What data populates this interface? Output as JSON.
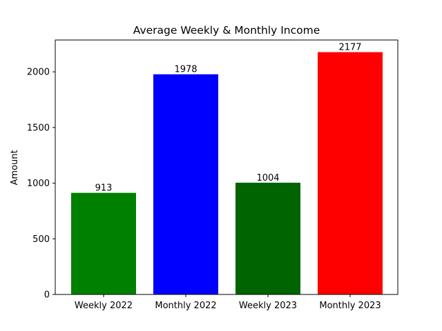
{
  "chart_data": {
    "type": "bar",
    "title": "Average Weekly & Monthly Income",
    "xlabel": "",
    "ylabel": "Amount",
    "categories": [
      "Weekly 2022",
      "Monthly 2022",
      "Weekly 2023",
      "Monthly 2023"
    ],
    "values": [
      913,
      1978,
      1004,
      2177
    ],
    "value_labels": [
      "913",
      "1978",
      "1004",
      "2177"
    ],
    "colors": [
      "#008000",
      "#0000ff",
      "#006400",
      "#ff0000"
    ],
    "ylim": [
      0,
      2286
    ],
    "yticks": [
      0,
      500,
      1000,
      1500,
      2000
    ],
    "ytick_labels": [
      "0",
      "500",
      "1000",
      "1500",
      "2000"
    ],
    "grid": false,
    "legend": "none"
  }
}
